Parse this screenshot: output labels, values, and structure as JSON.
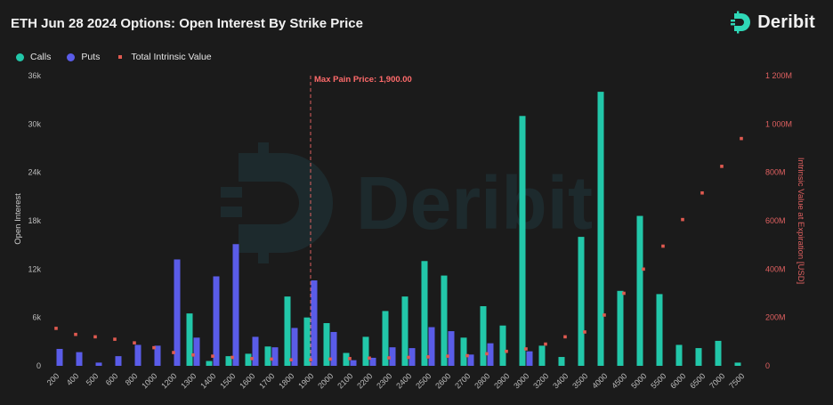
{
  "title": "ETH Jun 28 2024 Options: Open Interest By Strike Price",
  "brand": {
    "name": "Deribit",
    "icon": "deribit-logo-icon",
    "color": "#2fd8b7"
  },
  "watermark": "Deribit",
  "legend": [
    {
      "label": "Calls",
      "color": "#22c7a9",
      "shape": "dot"
    },
    {
      "label": "Puts",
      "color": "#5a5ce8",
      "shape": "dot"
    },
    {
      "label": "Total Intrinsic Value",
      "color": "#e05a50",
      "shape": "square"
    }
  ],
  "chart_data": {
    "type": "bar",
    "title": "ETH Jun 28 2024 Options: Open Interest By Strike Price",
    "xlabel": "",
    "ylabel": "Open Interest",
    "y2label": "Intrinsic Value at Expiration [USD]",
    "ylim": [
      0,
      36000
    ],
    "y2lim": [
      0,
      1200000000
    ],
    "yticks": [
      "0",
      "6k",
      "12k",
      "18k",
      "24k",
      "30k",
      "36k"
    ],
    "y2ticks": [
      "0",
      "200M",
      "400M",
      "600M",
      "800M",
      "1 000M",
      "1 200M"
    ],
    "categories": [
      "200",
      "400",
      "500",
      "600",
      "800",
      "1000",
      "1200",
      "1300",
      "1400",
      "1500",
      "1600",
      "1700",
      "1800",
      "1900",
      "2000",
      "2100",
      "2200",
      "2300",
      "2400",
      "2500",
      "2600",
      "2700",
      "2800",
      "2900",
      "3000",
      "3200",
      "3400",
      "3500",
      "4000",
      "4500",
      "5000",
      "5500",
      "6000",
      "6500",
      "7000",
      "7500"
    ],
    "series": [
      {
        "name": "Calls",
        "color": "#22c7a9",
        "values": [
          0,
          0,
          0,
          0,
          0,
          0,
          0,
          6500,
          600,
          1200,
          1500,
          2400,
          8600,
          6000,
          5300,
          1600,
          3600,
          6800,
          8600,
          13000,
          11200,
          3500,
          7400,
          5000,
          31000,
          2500,
          1100,
          16000,
          34000,
          9300,
          18600,
          8900,
          2600,
          2200,
          3100,
          400
        ]
      },
      {
        "name": "Puts",
        "color": "#5a5ce8",
        "values": [
          2100,
          1700,
          400,
          1200,
          2600,
          2500,
          13200,
          3500,
          11100,
          15100,
          3600,
          2300,
          4700,
          10600,
          4200,
          700,
          1000,
          2300,
          2200,
          4800,
          4300,
          1400,
          2800,
          0,
          1800,
          0,
          0,
          0,
          0,
          0,
          0,
          0,
          0,
          0,
          0,
          0
        ]
      },
      {
        "name": "Total Intrinsic Value",
        "color": "#e05a50",
        "values": [
          155000000,
          130000000,
          120000000,
          110000000,
          95000000,
          75000000,
          55000000,
          45000000,
          40000000,
          35000000,
          30000000,
          28000000,
          25000000,
          25000000,
          28000000,
          30000000,
          32000000,
          33000000,
          35000000,
          37000000,
          40000000,
          42000000,
          50000000,
          60000000,
          70000000,
          90000000,
          120000000,
          140000000,
          210000000,
          300000000,
          400000000,
          495000000,
          605000000,
          715000000,
          825000000,
          940000000
        ]
      }
    ],
    "annotation": {
      "label": "Max Pain Price: 1,900.00",
      "category": "1900",
      "color": "#ff6b6b"
    },
    "grid": false,
    "legend_position": "top-left"
  }
}
